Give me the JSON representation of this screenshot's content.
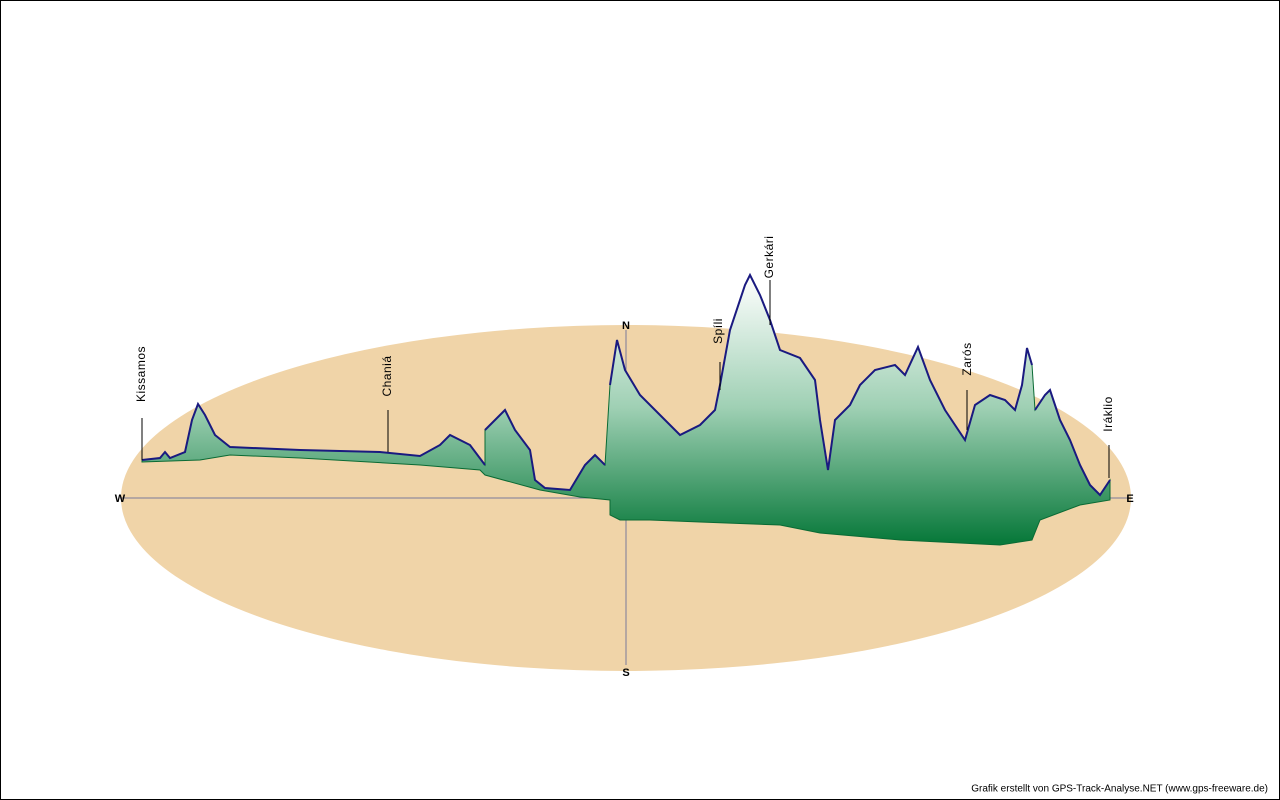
{
  "compass": {
    "west": "W",
    "east": "E",
    "north": "N",
    "south": "S"
  },
  "places": [
    "Kissamos",
    "Chaniá",
    "Spíli",
    "Gerkári",
    "Zarós",
    "Iráklio"
  ],
  "credit": "Grafik erstellt von GPS-Track-Analyse.NET (www.gps-freeware.de)"
}
